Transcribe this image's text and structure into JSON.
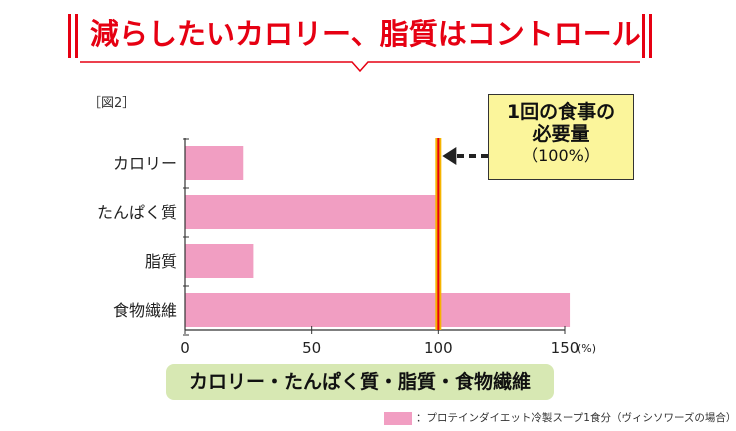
{
  "headline": "減らしたいカロリー、脂質はコントロール",
  "figure_label": "［図2］",
  "callout": {
    "line1": "1回の食事の",
    "line2": "必要量",
    "line3": "（100%）"
  },
  "category_pill": "カロリー・たんぱく質・脂質・食物繊維",
  "legend_text": "：プロテインダイエット冷製スープ1食分（ヴィシソワーズの場合）",
  "colors": {
    "accent": "#e60012",
    "bar": "#f19ec2",
    "reference": "#f5b400",
    "reference_core": "#e60012",
    "pill": "#d7e8b3",
    "callout": "#fbf59b"
  },
  "chart_data": {
    "type": "bar",
    "orientation": "horizontal",
    "categories": [
      "カロリー",
      "たんぱく質",
      "脂質",
      "食物繊維"
    ],
    "values": [
      23,
      100,
      27,
      152
    ],
    "xlim": [
      0,
      150
    ],
    "xticks": [
      "0",
      "50",
      "100",
      "150"
    ],
    "x_unit": "(%)",
    "reference_line": 100,
    "grid": false
  }
}
